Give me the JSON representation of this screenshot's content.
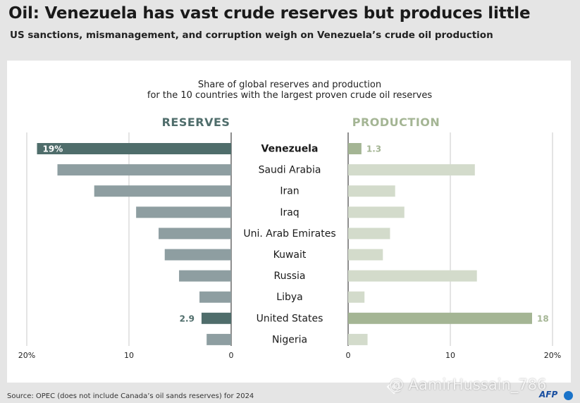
{
  "title": "Oil: Venezuela has vast crude reserves but produces little",
  "subtitle": "US sanctions, mismanagement, and corruption weigh on Venezuela’s crude oil production",
  "source": "Source: OPEC (does not include Canada’s oil sands reserves) for 2024",
  "watermark": "@ AamirHussain_786",
  "logo": "AFP",
  "chart_data": {
    "type": "bar",
    "title": "Share of global reserves and production\nfor the 10 countries with the largest proven crude oil reserves",
    "categories": [
      "Venezuela",
      "Saudi Arabia",
      "Iran",
      "Iraq",
      "Uni. Arab Emirates",
      "Kuwait",
      "Russia",
      "Libya",
      "United States",
      "Nigeria"
    ],
    "series": [
      {
        "name": "RESERVES",
        "values": [
          19,
          17,
          13.4,
          9.3,
          7.1,
          6.5,
          5.1,
          3.1,
          2.9,
          2.4
        ],
        "color": "#8e9ea1",
        "highlight_color": "#4f6d6b"
      },
      {
        "name": "PRODUCTION",
        "values": [
          1.3,
          12.4,
          4.6,
          5.5,
          4.1,
          3.4,
          12.6,
          1.6,
          18,
          1.9
        ],
        "color": "#d3dbcb",
        "highlight_color": "#a4b594"
      }
    ],
    "data_labels": {
      "reserves_Venezuela": "19%",
      "reserves_United States": "2.9",
      "production_Venezuela": "1.3",
      "production_United States": "18"
    },
    "highlight": [
      "Venezuela",
      "United States"
    ],
    "reserves_ticks": [
      "20%",
      "10",
      "0"
    ],
    "production_ticks": [
      "0",
      "10",
      "20%"
    ],
    "xlim": [
      0,
      20
    ],
    "grid": true
  }
}
